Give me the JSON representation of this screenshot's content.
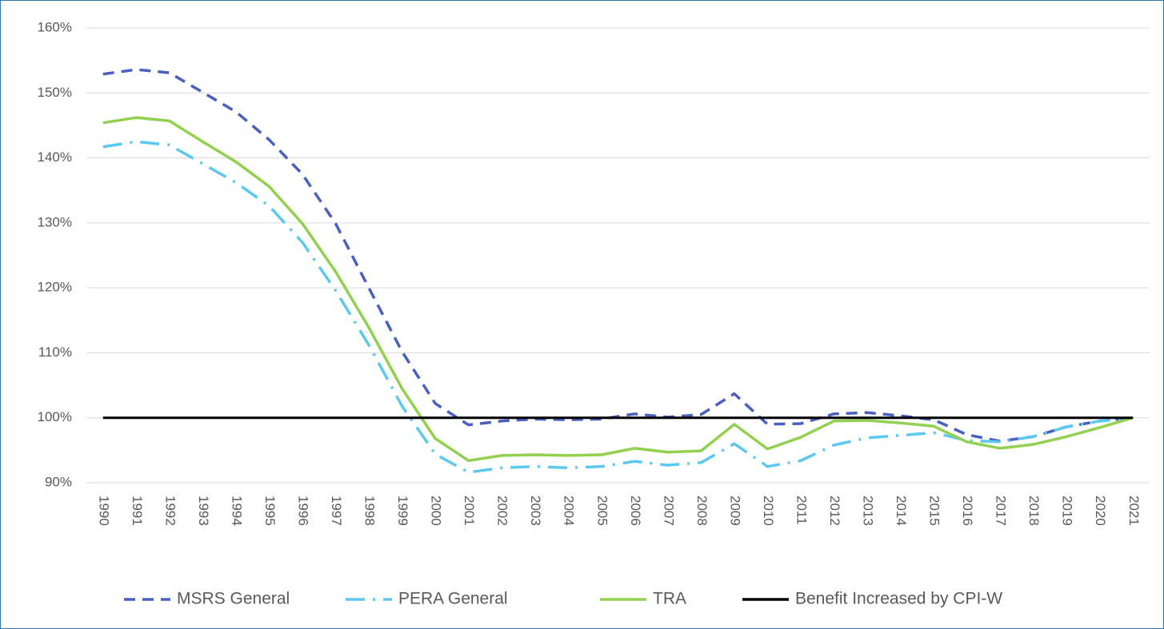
{
  "chart_data": {
    "type": "line",
    "categories": [
      "1990",
      "1991",
      "1992",
      "1993",
      "1994",
      "1995",
      "1996",
      "1997",
      "1998",
      "1999",
      "2000",
      "2001",
      "2002",
      "2003",
      "2004",
      "2005",
      "2006",
      "2007",
      "2008",
      "2009",
      "2010",
      "2011",
      "2012",
      "2013",
      "2014",
      "2015",
      "2016",
      "2017",
      "2018",
      "2019",
      "2020",
      "2021"
    ],
    "series": [
      {
        "name": "MSRS General",
        "color": "#4a5fc1",
        "dash": "dashed",
        "values": [
          152.9,
          153.6,
          153.1,
          150.1,
          147.1,
          142.8,
          137.5,
          129.9,
          120.0,
          110.2,
          102.2,
          98.9,
          99.5,
          99.8,
          99.7,
          99.8,
          100.6,
          100.1,
          100.5,
          103.7,
          99.0,
          99.1,
          100.6,
          100.8,
          100.3,
          99.7,
          97.4,
          96.4,
          97.1,
          98.6,
          99.5,
          100
        ]
      },
      {
        "name": "PERA General",
        "color": "#5bc8f0",
        "dash": "long-dash-dot",
        "values": [
          141.7,
          142.5,
          142.0,
          139.1,
          136.2,
          132.6,
          127.0,
          119.6,
          111.2,
          101.8,
          94.4,
          91.6,
          92.3,
          92.5,
          92.3,
          92.5,
          93.3,
          92.7,
          93.1,
          96.0,
          92.5,
          93.4,
          95.8,
          96.9,
          97.3,
          97.7,
          96.5,
          96.3,
          97.1,
          98.6,
          99.5,
          100
        ]
      },
      {
        "name": "TRA",
        "color": "#92d050",
        "dash": "solid",
        "values": [
          145.4,
          146.2,
          145.7,
          142.5,
          139.4,
          135.6,
          129.9,
          122.5,
          113.9,
          104.5,
          96.8,
          93.4,
          94.2,
          94.3,
          94.2,
          94.3,
          95.3,
          94.7,
          94.9,
          99.0,
          95.2,
          97.0,
          99.5,
          99.6,
          99.2,
          98.7,
          96.3,
          95.3,
          95.9,
          97.1,
          98.5,
          100
        ]
      },
      {
        "name": "Benefit Increased by CPI-W",
        "color": "#000000",
        "dash": "solid",
        "values": [
          100,
          100,
          100,
          100,
          100,
          100,
          100,
          100,
          100,
          100,
          100,
          100,
          100,
          100,
          100,
          100,
          100,
          100,
          100,
          100,
          100,
          100,
          100,
          100,
          100,
          100,
          100,
          100,
          100,
          100,
          100,
          100
        ]
      }
    ],
    "ylim": [
      90,
      160
    ],
    "yticks": [
      {
        "value": 90,
        "label": "90%"
      },
      {
        "value": 100,
        "label": "100%"
      },
      {
        "value": 110,
        "label": "110%"
      },
      {
        "value": 120,
        "label": "120%"
      },
      {
        "value": 130,
        "label": "130%"
      },
      {
        "value": 140,
        "label": "140%"
      },
      {
        "value": 150,
        "label": "150%"
      },
      {
        "value": 160,
        "label": "160%"
      }
    ],
    "grid": true,
    "legend": "bottom"
  }
}
